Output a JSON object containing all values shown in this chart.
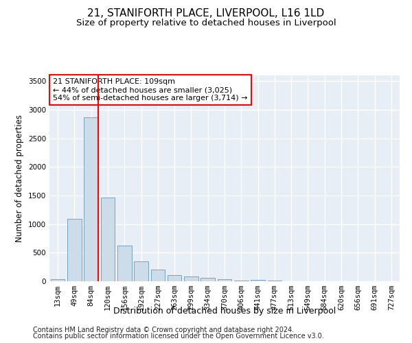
{
  "title": "21, STANIFORTH PLACE, LIVERPOOL, L16 1LD",
  "subtitle": "Size of property relative to detached houses in Liverpool",
  "xlabel": "Distribution of detached houses by size in Liverpool",
  "ylabel": "Number of detached properties",
  "footer_line1": "Contains HM Land Registry data © Crown copyright and database right 2024.",
  "footer_line2": "Contains public sector information licensed under the Open Government Licence v3.0.",
  "annotation_line1": "21 STANIFORTH PLACE: 109sqm",
  "annotation_line2": "← 44% of detached houses are smaller (3,025)",
  "annotation_line3": "54% of semi-detached houses are larger (3,714) →",
  "bar_labels": [
    "13sqm",
    "49sqm",
    "84sqm",
    "120sqm",
    "156sqm",
    "192sqm",
    "227sqm",
    "263sqm",
    "299sqm",
    "334sqm",
    "370sqm",
    "406sqm",
    "441sqm",
    "477sqm",
    "513sqm",
    "549sqm",
    "584sqm",
    "620sqm",
    "656sqm",
    "691sqm",
    "727sqm"
  ],
  "bar_values": [
    40,
    1090,
    2870,
    1470,
    620,
    345,
    205,
    110,
    90,
    60,
    40,
    10,
    25,
    15,
    5,
    0,
    0,
    0,
    0,
    0,
    0
  ],
  "bar_color": "#ccdce8",
  "bar_edge_color": "#6699bb",
  "vline_color": "red",
  "vline_pos": 2.425,
  "ylim": [
    0,
    3600
  ],
  "yticks": [
    0,
    500,
    1000,
    1500,
    2000,
    2500,
    3000,
    3500
  ],
  "plot_bg_color": "#e8eef5",
  "grid_color": "white",
  "title_fontsize": 11,
  "subtitle_fontsize": 9.5,
  "annotation_fontsize": 8,
  "xlabel_fontsize": 9,
  "ylabel_fontsize": 8.5,
  "tick_fontsize": 7.5,
  "footer_fontsize": 7
}
